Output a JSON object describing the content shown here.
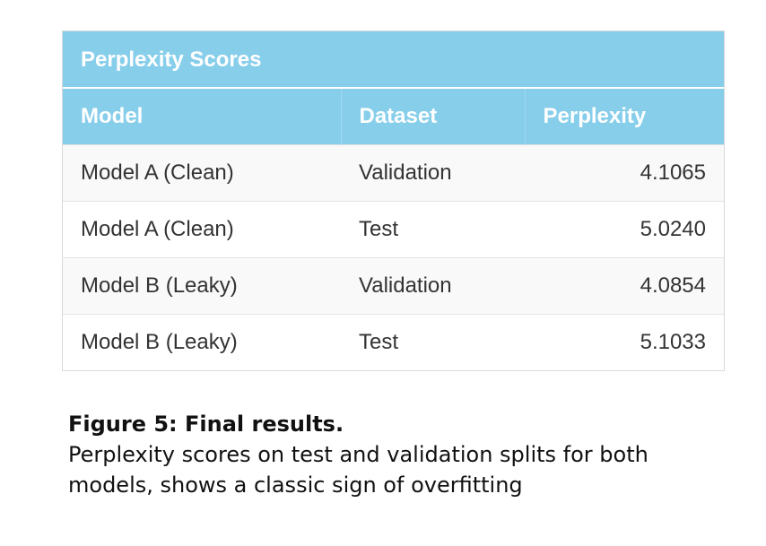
{
  "table": {
    "title": "Perplexity Scores",
    "headers": [
      "Model",
      "Dataset",
      "Perplexity"
    ],
    "rows": [
      [
        "Model A (Clean)",
        "Validation",
        "4.1065"
      ],
      [
        "Model A (Clean)",
        "Test",
        "5.0240"
      ],
      [
        "Model B (Leaky)",
        "Validation",
        "4.0854"
      ],
      [
        "Model B (Leaky)",
        "Test",
        "5.1033"
      ]
    ]
  },
  "caption": {
    "title": "Figure 5: Final results.",
    "body": "Perplexity scores on test and validation splits for both models, shows a classic sign of overfitting"
  },
  "colors": {
    "header_bg": "#87ceeb",
    "header_text": "#ffffff",
    "row_alt_bg": "#f9f9f9"
  }
}
